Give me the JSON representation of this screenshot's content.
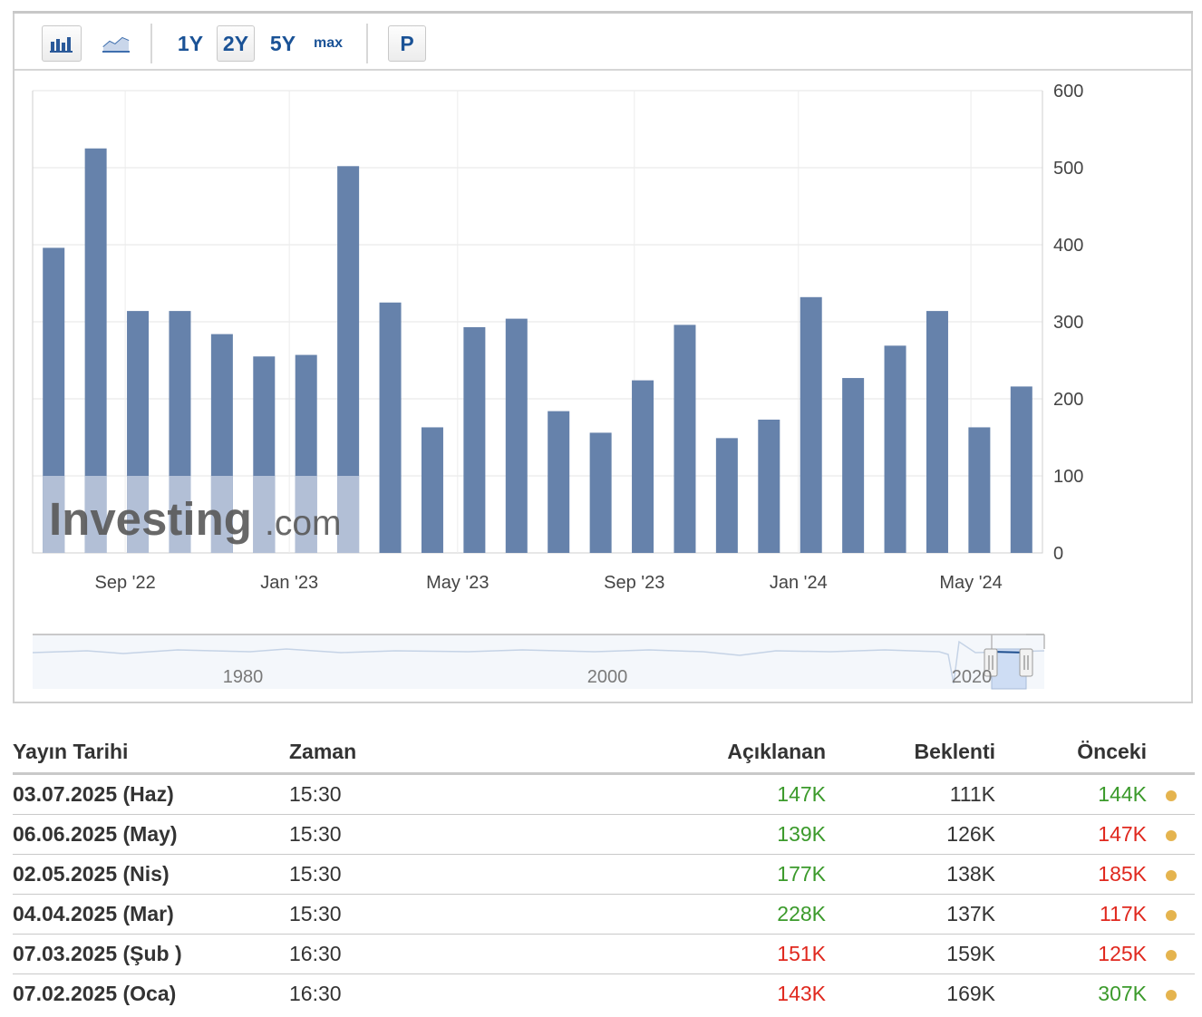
{
  "toolbar": {
    "bar_icon": "bar-chart-icon",
    "line_icon": "line-chart-icon",
    "range_1y": "1Y",
    "range_2y": "2Y",
    "range_5y": "5Y",
    "range_max": "max",
    "p_button": "P",
    "active_range": "2Y"
  },
  "watermark": {
    "main": "Investing",
    "suffix": ".com"
  },
  "colors": {
    "bar": "#6682ab",
    "bar_watermarked": "#b2bfd6",
    "up": "#3b9a2b",
    "down": "#e0281e",
    "neutral": "#333333",
    "dot": "#e5b44f"
  },
  "chart_data": {
    "type": "bar",
    "y_ticks": [
      "0",
      "100",
      "200",
      "300",
      "400",
      "500",
      "600"
    ],
    "ylim": [
      0,
      600
    ],
    "x_tick_labels": [
      "Sep '22",
      "Jan '23",
      "May '23",
      "Sep '23",
      "Jan '24",
      "May '24"
    ],
    "values": [
      396,
      525,
      314,
      314,
      284,
      255,
      257,
      502,
      325,
      163,
      293,
      304,
      184,
      156,
      224,
      296,
      149,
      173,
      332,
      227,
      269,
      314,
      163,
      216
    ],
    "grid": true,
    "navigator_labels": [
      "1980",
      "2000",
      "2020"
    ]
  },
  "table": {
    "headers": {
      "date": "Yayın Tarihi",
      "time": "Zaman",
      "actual": "Açıklanan",
      "forecast": "Beklenti",
      "previous": "Önceki"
    },
    "rows": [
      {
        "date": "03.07.2025 (Haz)",
        "time": "15:30",
        "actual": "147K",
        "actual_color": "up",
        "forecast": "111K",
        "previous": "144K",
        "previous_color": "up"
      },
      {
        "date": "06.06.2025 (May)",
        "time": "15:30",
        "actual": "139K",
        "actual_color": "up",
        "forecast": "126K",
        "previous": "147K",
        "previous_color": "down"
      },
      {
        "date": "02.05.2025 (Nis)",
        "time": "15:30",
        "actual": "177K",
        "actual_color": "up",
        "forecast": "138K",
        "previous": "185K",
        "previous_color": "down"
      },
      {
        "date": "04.04.2025 (Mar)",
        "time": "15:30",
        "actual": "228K",
        "actual_color": "up",
        "forecast": "137K",
        "previous": "117K",
        "previous_color": "down"
      },
      {
        "date": "07.03.2025 (Şub )",
        "time": "16:30",
        "actual": "151K",
        "actual_color": "down",
        "forecast": "159K",
        "previous": "125K",
        "previous_color": "down"
      },
      {
        "date": "07.02.2025 (Oca)",
        "time": "16:30",
        "actual": "143K",
        "actual_color": "down",
        "forecast": "169K",
        "previous": "307K",
        "previous_color": "up"
      }
    ]
  }
}
